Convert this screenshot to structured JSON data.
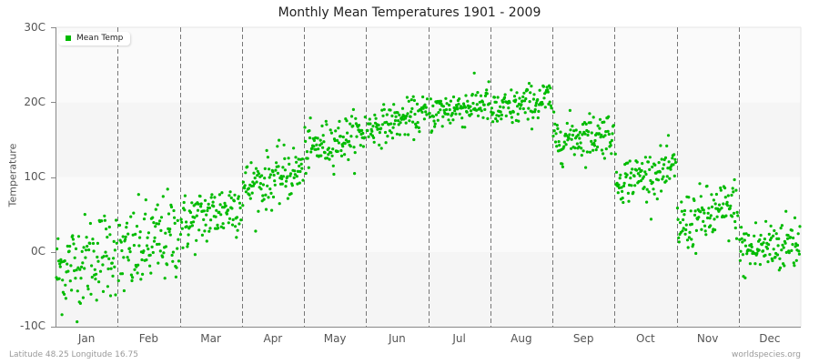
{
  "chart_data": {
    "type": "scatter",
    "title": "Monthly Mean Temperatures 1901 - 2009",
    "xlabel": "",
    "ylabel": "Temperature",
    "ylim": [
      -10,
      30
    ],
    "yticks": [
      "-10C",
      "0C",
      "10C",
      "20C",
      "30C"
    ],
    "categories": [
      "Jan",
      "Feb",
      "Mar",
      "Apr",
      "May",
      "Jun",
      "Jul",
      "Aug",
      "Sep",
      "Oct",
      "Nov",
      "Dec"
    ],
    "legend": {
      "position": "top-left",
      "entries": [
        "Mean Temp"
      ]
    },
    "grid": {
      "horizontal_bands": true,
      "vertical_dashed_month_dividers": true
    },
    "series": [
      {
        "name": "Mean Temp",
        "color": "#00bb00",
        "points_per_month": 109,
        "monthly_mean_start": [
          -2.5,
          -1.0,
          3.5,
          8.5,
          13.5,
          16.5,
          18.5,
          18.5,
          15.0,
          9.5,
          3.5,
          0.0
        ],
        "monthly_mean_end": [
          0.5,
          2.5,
          6.5,
          11.0,
          16.0,
          18.5,
          20.0,
          20.5,
          16.0,
          11.0,
          6.0,
          1.5
        ],
        "monthly_spread": [
          3.0,
          3.0,
          2.0,
          1.8,
          1.5,
          1.2,
          1.3,
          1.3,
          1.5,
          1.5,
          2.0,
          2.0
        ]
      }
    ]
  },
  "footer": {
    "location": "Latitude 48.25 Longitude 16.75",
    "source": "worldspecies.org"
  },
  "colors": {
    "point": "#00bb00",
    "band_light": "#fafafa",
    "band_dark": "#f5f5f5",
    "divider": "#777777",
    "axis": "#888888"
  }
}
